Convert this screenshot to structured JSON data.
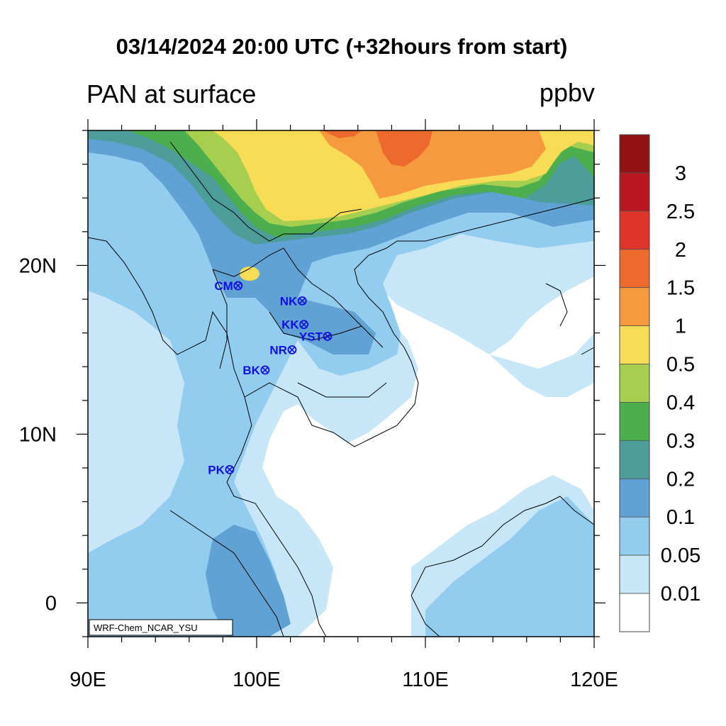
{
  "title": "03/14/2024 20:00 UTC (+32hours from start)",
  "subtitle_left": "PAN at surface",
  "units": "ppbv",
  "credit": "WRF-Chem_NCAR_YSU",
  "map": {
    "lon_range": [
      90,
      120
    ],
    "lat_range": [
      -2,
      28
    ],
    "lon_ticks": [
      {
        "value": 90,
        "label": "90E"
      },
      {
        "value": 100,
        "label": "100E"
      },
      {
        "value": 110,
        "label": "110E"
      },
      {
        "value": 120,
        "label": "120E"
      }
    ],
    "lat_ticks": [
      {
        "value": 0,
        "label": "0"
      },
      {
        "value": 10,
        "label": "10N"
      },
      {
        "value": 20,
        "label": "20N"
      }
    ]
  },
  "colorbar": {
    "levels": [
      "0.01",
      "0.05",
      "0.1",
      "0.2",
      "0.3",
      "0.4",
      "0.5",
      "1",
      "1.5",
      "2",
      "2.5",
      "3"
    ],
    "colors": [
      "#ffffff",
      "#c7e7f8",
      "#92ccee",
      "#60a2d4",
      "#4d9e9a",
      "#4cae4c",
      "#a7cf4f",
      "#f8dc56",
      "#f59a3e",
      "#ee6a2c",
      "#dd3328",
      "#b8171f",
      "#911315"
    ]
  },
  "stations": [
    {
      "name": "CM",
      "lon": 98.9,
      "lat": 18.8
    },
    {
      "name": "NK",
      "lon": 102.7,
      "lat": 17.9
    },
    {
      "name": "KK",
      "lon": 102.8,
      "lat": 16.5
    },
    {
      "name": "YST",
      "lon": 104.2,
      "lat": 15.8
    },
    {
      "name": "NR",
      "lon": 102.1,
      "lat": 15.0
    },
    {
      "name": "BK",
      "lon": 100.5,
      "lat": 13.8
    },
    {
      "name": "PK",
      "lon": 98.4,
      "lat": 7.9
    }
  ]
}
